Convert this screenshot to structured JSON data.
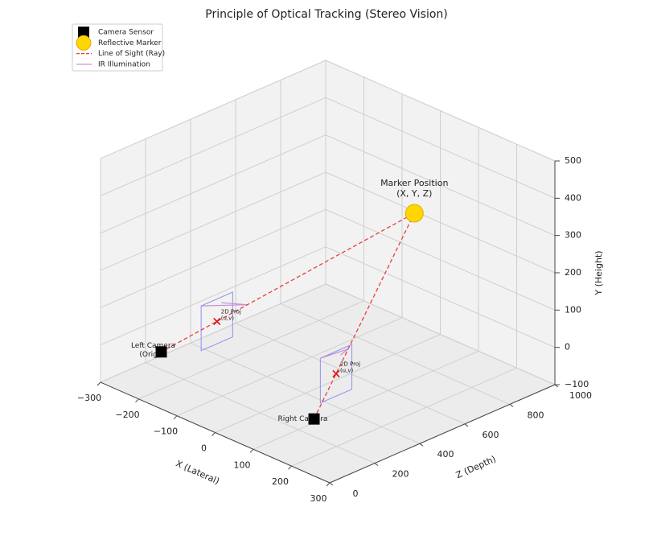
{
  "chart_data": {
    "type": "scatter3d",
    "title": "Principle of Optical Tracking (Stereo Vision)",
    "xlabel": "X (Lateral)",
    "ylabel": "Y (Height)",
    "zlabel": "Z (Depth)",
    "xlim": [
      -300,
      300
    ],
    "ylim": [
      -100,
      500
    ],
    "zlim": [
      0,
      1000
    ],
    "xticks": [
      {
        "value": -300,
        "label": "−300"
      },
      {
        "value": -200,
        "label": "−200"
      },
      {
        "value": -100,
        "label": "−100"
      },
      0,
      100,
      200,
      300
    ],
    "yticks": [
      {
        "value": -100,
        "label": "−100"
      },
      0,
      100,
      200,
      300,
      400,
      500
    ],
    "zticks": [
      0,
      200,
      400,
      600,
      800,
      1000
    ],
    "grid": true,
    "legend": "upper left",
    "series": [
      {
        "name": "Camera Sensor",
        "color": "#000000",
        "marker": "square",
        "x": [
          -200,
          200
        ],
        "y": [
          0,
          0
        ],
        "z": [
          100,
          100
        ],
        "labels": [
          [
            "Left Camera",
            "(Origin)"
          ],
          [
            "Right Camera"
          ]
        ]
      },
      {
        "name": "Reflective Marker",
        "color": "#ffd700",
        "marker": "circle",
        "x": [
          50
        ],
        "y": [
          300
        ],
        "z": [
          800
        ],
        "labels": [
          [
            "Marker Position",
            "(X, Y, Z)"
          ]
        ]
      }
    ],
    "lines": [
      {
        "name": "Line of Sight (Ray)",
        "color": "#e8403a",
        "style": "dashed"
      },
      {
        "name": "IR Illumination",
        "color": "#c68fd6",
        "style": "solid"
      }
    ],
    "projection": {
      "label": [
        "2D Proj",
        "(u,v)"
      ],
      "color": "#e01010",
      "plane_color": "#8f8ff0"
    }
  }
}
